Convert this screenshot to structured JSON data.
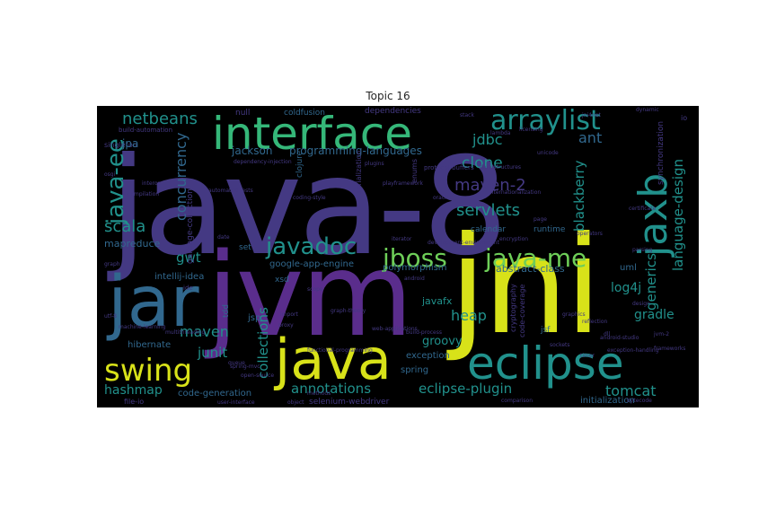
{
  "figure": {
    "title": "Topic 16"
  },
  "palette": {
    "purple": "#5a2d8c",
    "indigo": "#443983",
    "blue": "#31688e",
    "teal": "#21918c",
    "green": "#35b779",
    "lime": "#6ece58",
    "yellow": "#d8e219",
    "background": "#000000"
  },
  "words": {
    "java_8": "java-8",
    "jni": "jni",
    "jvm": "jvm",
    "jar": "jar",
    "interface": "interface",
    "java": "java",
    "eclipse": "eclipse",
    "jaxb": "jaxb",
    "swing": "swing",
    "arraylist": "arraylist",
    "java_ee": "java-ee",
    "javadoc": "javadoc",
    "jboss": "jboss",
    "java_me": "java-me",
    "netbeans": "netbeans",
    "concurrency": "concurrency",
    "scala": "scala",
    "jdbc": "jdbc",
    "clone": "clone",
    "maven_2": "maven-2",
    "servlets": "servlets",
    "blackberry": "blackberry",
    "language_design": "language-design",
    "generics": "generics",
    "ant": "ant",
    "collections": "collections",
    "heap": "heap",
    "maven": "maven",
    "junit": "junit",
    "hashmap": "hashmap",
    "annotations": "annotations",
    "eclipse_plugin": "eclipse-plugin",
    "tomcat": "tomcat",
    "log4j": "log4j",
    "gradle": "gradle",
    "groovy": "groovy",
    "javafx": "javafx",
    "gwt": "gwt",
    "jackson": "jackson",
    "programming_languages": "programming-languages",
    "mapreduce": "mapreduce",
    "abstract_class": "abstract-class",
    "polymorphism": "polymorphism",
    "google_app_engine": "google-app-engine",
    "intellij_idea": "intellij-idea",
    "hibernate": "hibernate",
    "code_generation": "code-generation",
    "selenium_webdriver": "selenium-webdriver",
    "initialization": "initialization",
    "exception": "exception",
    "spring": "spring",
    "jsp": "jsp",
    "cryptography": "cryptography",
    "code_coverage": "code-coverage",
    "synchronization": "synchronization",
    "garbage_collection": "garbage-collection",
    "serialization": "serialization",
    "runtime": "runtime",
    "calendar": "calendar",
    "uml": "uml",
    "coldfusion": "coldfusion",
    "dependencies": "dependencies",
    "null": "null",
    "build_automation": "build-automation",
    "singleton": "singleton",
    "jpa": "jpa",
    "clojure": "clojure",
    "jsf": "jsf",
    "xsd": "xsd",
    "set": "set",
    "file_io": "file-io",
    "io": "io",
    "ide": "ide",
    "android_studio": "android-studio",
    "development_environment": "development-environment",
    "tdd": "tdd",
    "protocol_buffers": "protocol-buffers",
    "playframework": "playframework",
    "date": "date",
    "iterator": "iterator",
    "object": "object",
    "methods": "methods",
    "graph": "graph",
    "osgi": "osgi",
    "compilation": "compilation",
    "enums": "enums",
    "interop": "interop",
    "reflection": "reflection",
    "licensing": "licensing",
    "stack": "stack",
    "proxy": "proxy",
    "import": "import",
    "queue": "queue",
    "scope": "scope",
    "design": "design",
    "graphics": "graphics",
    "sockets": "sockets",
    "timer": "timer",
    "lambda": "lambda",
    "parsing": "parsing",
    "certificate": "certificate",
    "operators": "operators",
    "encryption": "encryption",
    "plugins": "plugins",
    "frameworks": "frameworks",
    "jni4net": "jni4net",
    "exception_handling": "exception-handling",
    "data_structures": "data-structures",
    "internationalization": "internationalization",
    "unicode": "unicode",
    "comparison": "comparison",
    "user_interface": "user-interface",
    "multithreading": "multithreading",
    "open_source": "open-source",
    "functional_programming": "functional-programming",
    "dependency_injection": "dependency-injection",
    "automated_tests": "automated-tests",
    "coding_style": "coding-style",
    "build_process": "build-process",
    "web_applications": "web-applications",
    "graph_theory": "graph-theory",
    "spring_mvc": "spring-mvc",
    "page": "page",
    "dll": "dll",
    "oracle": "oracle",
    "utf_8": "utf-8",
    "jvm_2": "jvm-2",
    "bytecode": "bytecode",
    "machine_learning": "machine-learning",
    "dynamic": "dynamic",
    "android": "android"
  }
}
